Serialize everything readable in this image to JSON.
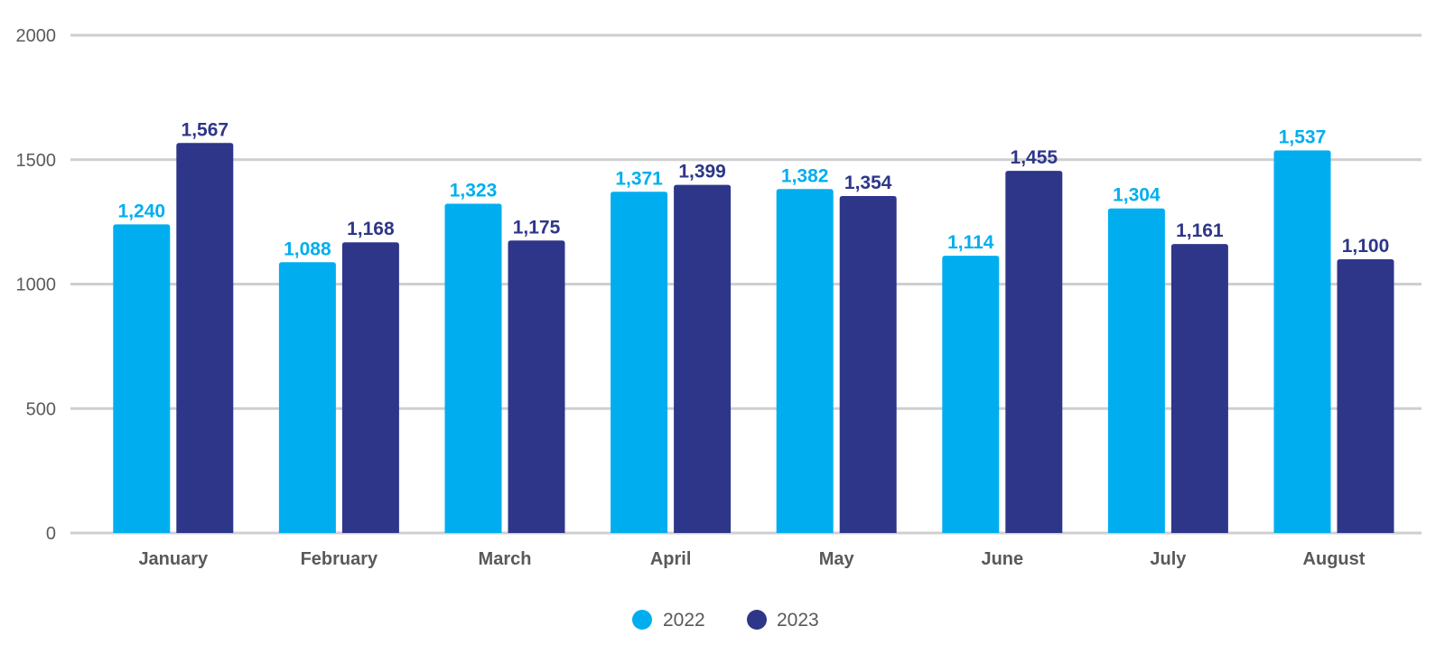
{
  "chart_data": {
    "type": "bar",
    "title": "",
    "xlabel": "",
    "ylabel": "",
    "categories": [
      "January",
      "February",
      "March",
      "April",
      "May",
      "June",
      "July",
      "August"
    ],
    "series": [
      {
        "name": "2022",
        "color": "#00aeef",
        "values": [
          1240,
          1088,
          1323,
          1371,
          1382,
          1114,
          1304,
          1537
        ],
        "labels": [
          "1,240",
          "1,088",
          "1,323",
          "1,371",
          "1,382",
          "1,114",
          "1,304",
          "1,537"
        ]
      },
      {
        "name": "2023",
        "color": "#2e3689",
        "values": [
          1567,
          1168,
          1175,
          1399,
          1354,
          1455,
          1161,
          1100
        ],
        "labels": [
          "1,567",
          "1,168",
          "1,175",
          "1,399",
          "1,354",
          "1,455",
          "1,161",
          "1,100"
        ]
      }
    ],
    "ylim": [
      0,
      2000
    ],
    "yticks": [
      0,
      500,
      1000,
      1500,
      2000
    ],
    "ytick_labels": [
      "0",
      "500",
      "1000",
      "1500",
      "2000"
    ],
    "grid": true,
    "legend": "bottom-center"
  }
}
